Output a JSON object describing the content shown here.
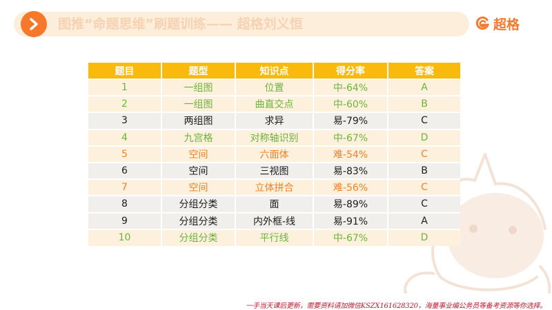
{
  "header": {
    "title": "图推“命题思维”刷题训练—— 超格刘义恒",
    "logo_text": "超格",
    "accent_color": "#f5782b",
    "icon": "chevron-right-icon"
  },
  "table": {
    "headers": [
      "题目",
      "题型",
      "知识点",
      "得分率",
      "答案"
    ],
    "rows": [
      {
        "num": "1",
        "type": "一组图",
        "point": "位置",
        "rate": "中-64%",
        "answer": "A",
        "color": "green"
      },
      {
        "num": "2",
        "type": "一组图",
        "point": "曲直交点",
        "rate": "中-60%",
        "answer": "B",
        "color": "green"
      },
      {
        "num": "3",
        "type": "两组图",
        "point": "求异",
        "rate": "易-79%",
        "answer": "C",
        "color": "black"
      },
      {
        "num": "4",
        "type": "九宫格",
        "point": "对称轴识别",
        "rate": "中-67%",
        "answer": "D",
        "color": "green"
      },
      {
        "num": "5",
        "type": "空间",
        "point": "六面体",
        "rate": "难-54%",
        "answer": "C",
        "color": "orange"
      },
      {
        "num": "6",
        "type": "空间",
        "point": "三视图",
        "rate": "易-83%",
        "answer": "B",
        "color": "black"
      },
      {
        "num": "7",
        "type": "空间",
        "point": "立体拼合",
        "rate": "难-56%",
        "answer": "C",
        "color": "orange"
      },
      {
        "num": "8",
        "type": "分组分类",
        "point": "面",
        "rate": "易-89%",
        "answer": "C",
        "color": "black"
      },
      {
        "num": "9",
        "type": "分组分类",
        "point": "内外框-线",
        "rate": "易-91%",
        "answer": "A",
        "color": "black"
      },
      {
        "num": "10",
        "type": "分组分类",
        "point": "平行线",
        "rate": "中-67%",
        "answer": "D",
        "color": "green"
      }
    ]
  },
  "footer": {
    "text": "一手当天课后更新，需要资料请加微信KSZX161628320，海量事业编公务员等备考资源等你选择。"
  }
}
